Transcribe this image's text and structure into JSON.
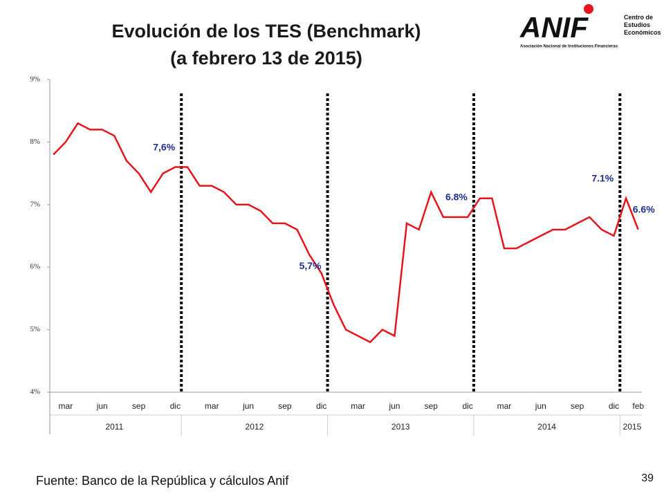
{
  "header": {
    "title_line1": "Evolución de los TES (Benchmark)",
    "title_line2": "(a febrero 13 de 2015)",
    "logo": "ANIF",
    "logo_subtitle": "Centro de Estudios Económicos",
    "logo_caption": "Asociación Nacional de Instituciones Financieras"
  },
  "chart_data": {
    "type": "line",
    "categories": [
      null,
      "mar",
      null,
      null,
      "jun",
      null,
      null,
      "sep",
      null,
      null,
      "dic",
      null,
      null,
      "mar",
      null,
      null,
      "jun",
      null,
      null,
      "sep",
      null,
      null,
      "dic",
      null,
      null,
      "mar",
      null,
      null,
      "jun",
      null,
      null,
      "sep",
      null,
      null,
      "dic",
      null,
      null,
      "mar",
      null,
      null,
      "jun",
      null,
      null,
      "sep",
      null,
      null,
      "dic",
      null,
      "feb"
    ],
    "years": [
      "2011",
      "2012",
      "2013",
      "2014",
      "2015"
    ],
    "series": [
      {
        "name": "TES",
        "color": "#e3141b",
        "values": [
          7.8,
          8.0,
          8.3,
          8.2,
          8.2,
          8.1,
          7.7,
          7.5,
          7.2,
          7.5,
          7.6,
          7.6,
          7.3,
          7.3,
          7.2,
          7.0,
          7.0,
          6.9,
          6.7,
          6.7,
          6.6,
          6.2,
          5.9,
          5.4,
          5.0,
          4.9,
          4.8,
          5.0,
          4.9,
          6.7,
          6.6,
          7.2,
          6.8,
          6.8,
          6.8,
          7.1,
          7.1,
          6.3,
          6.3,
          6.4,
          6.5,
          6.6,
          6.6,
          6.7,
          6.8,
          6.6,
          6.5,
          7.1,
          6.6
        ]
      }
    ],
    "ylim": [
      4,
      9
    ],
    "yticks": [
      {
        "value": 4,
        "label": "4%"
      },
      {
        "value": 5,
        "label": "5%"
      },
      {
        "value": 6,
        "label": "6%"
      },
      {
        "value": 7,
        "label": "7%"
      },
      {
        "value": 8,
        "label": "8%"
      },
      {
        "value": 9,
        "label": "9%"
      }
    ],
    "annotations": [
      {
        "label": "7,6%",
        "value": 7.6
      },
      {
        "label": "5,7%",
        "value": 5.7
      },
      {
        "label": "6.8%",
        "value": 6.8
      },
      {
        "label": "7.1%",
        "value": 7.1
      },
      {
        "label": "6.6%",
        "value": 6.6
      }
    ]
  },
  "footer": {
    "source": "Fuente: Banco de la República y cálculos Anif",
    "page": "39"
  }
}
